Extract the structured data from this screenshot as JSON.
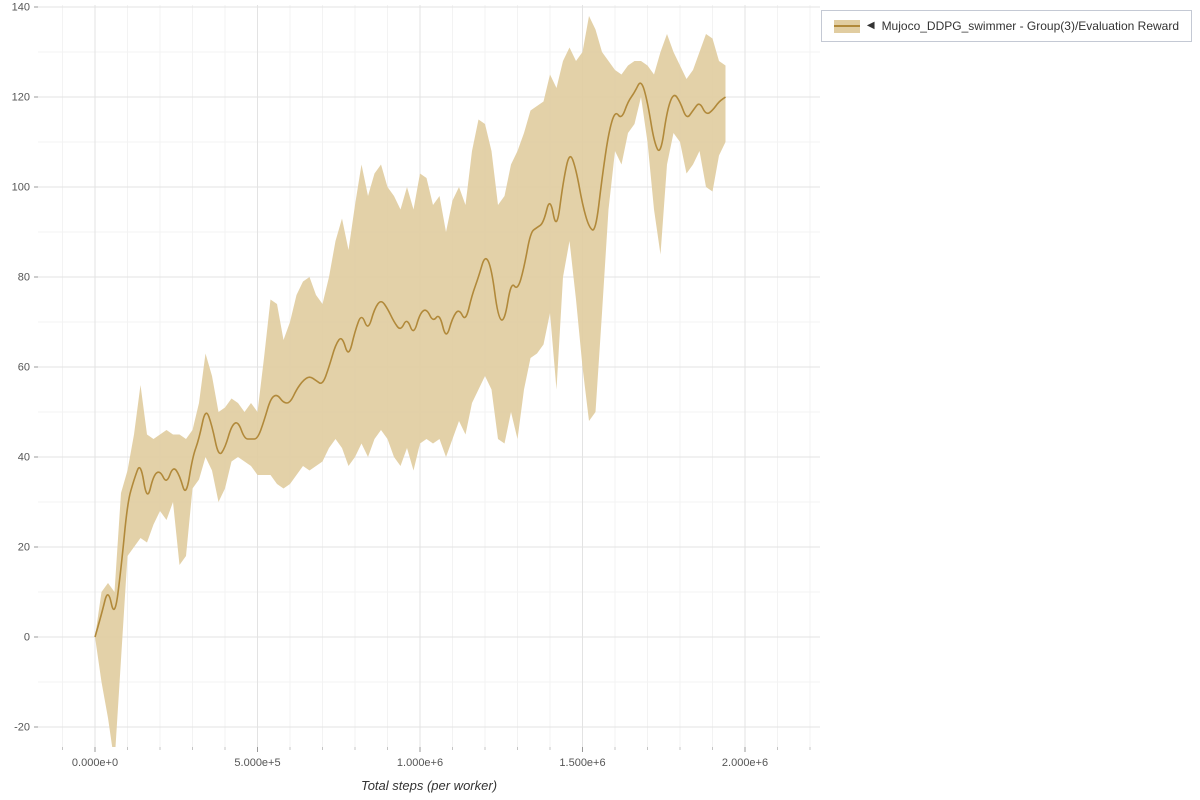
{
  "legend": {
    "collapse_icon": "◀",
    "label": "Mujoco_DDPG_swimmer - Group(3)/Evaluation Reward"
  },
  "axes": {
    "x_label": "Total steps (per worker)",
    "x_tick_labels": [
      "0.000e+0",
      "5.000e+5",
      "1.000e+6",
      "1.500e+6",
      "2.000e+6"
    ],
    "y_tick_labels": [
      "-20",
      "0",
      "20",
      "40",
      "60",
      "80",
      "100",
      "120",
      "140"
    ]
  },
  "colors": {
    "line": "#b1893a",
    "band": "#e1cda1",
    "grid_major": "#e3e3e3",
    "grid_minor": "#f3f3f3",
    "tick_text": "#555555",
    "tick_mark": "#999999",
    "tick_mark_minor": "#c4c4c4"
  },
  "chart_data": {
    "type": "line",
    "title": "",
    "xlabel": "Total steps (per worker)",
    "ylabel": "",
    "xlim": [
      -175000,
      2230000
    ],
    "ylim": [
      -24,
      140
    ],
    "grid": true,
    "legend_position": "top-right-outside",
    "x_tick_values": [
      0,
      500000,
      1000000,
      1500000,
      2000000
    ],
    "x_tick_labels": [
      "0.000e+0",
      "5.000e+5",
      "1.000e+6",
      "1.500e+6",
      "2.000e+6"
    ],
    "y_tick_values": [
      -20,
      0,
      20,
      40,
      60,
      80,
      100,
      120,
      140
    ],
    "x_minor_interval": 100000,
    "y_minor_interval": 10,
    "series": [
      {
        "name": "Mujoco_DDPG_swimmer - Group(3)/Evaluation Reward",
        "band": "std/min-max shaded region",
        "x_start": 0,
        "x_step": 20000,
        "n_points": 98,
        "mean": [
          0,
          5,
          11,
          4,
          15,
          30,
          35,
          39,
          30,
          36,
          37,
          34,
          38,
          36,
          31,
          40,
          44,
          51,
          47,
          40,
          42,
          47,
          48,
          44,
          44,
          44,
          48,
          53,
          54,
          52,
          52,
          55,
          57,
          58,
          57,
          56,
          60,
          65,
          67,
          62,
          68,
          72,
          68,
          73,
          75,
          73,
          70,
          68,
          71,
          67,
          72,
          73,
          70,
          72,
          66,
          71,
          73,
          70,
          76,
          80,
          85,
          82,
          71,
          70,
          79,
          77,
          82,
          90,
          91,
          92,
          98,
          90,
          101,
          108,
          104,
          96,
          91,
          90,
          102,
          112,
          117,
          115,
          119,
          121,
          124,
          119,
          110,
          107,
          117,
          121,
          119,
          115,
          117,
          119,
          116,
          117,
          119,
          120
        ],
        "low": [
          0,
          -10,
          -18,
          -28,
          -5,
          18,
          20,
          22,
          21,
          25,
          28,
          26,
          30,
          16,
          18,
          33,
          35,
          40,
          37,
          30,
          33,
          39,
          40,
          39,
          38,
          36,
          36,
          36,
          34,
          33,
          34,
          36,
          38,
          37,
          38,
          39,
          42,
          44,
          42,
          38,
          40,
          43,
          40,
          44,
          46,
          44,
          40,
          38,
          42,
          37,
          43,
          44,
          43,
          44,
          40,
          44,
          48,
          45,
          52,
          55,
          58,
          55,
          44,
          43,
          50,
          44,
          55,
          62,
          63,
          65,
          72,
          55,
          80,
          88,
          75,
          60,
          48,
          50,
          72,
          95,
          108,
          105,
          112,
          114,
          120,
          110,
          95,
          85,
          105,
          112,
          110,
          103,
          105,
          108,
          100,
          99,
          107,
          110
        ],
        "high": [
          0,
          10,
          12,
          10,
          32,
          37,
          45,
          56,
          45,
          44,
          45,
          46,
          45,
          45,
          44,
          46,
          52,
          63,
          58,
          50,
          51,
          53,
          52,
          50,
          52,
          50,
          62,
          75,
          74,
          66,
          70,
          76,
          79,
          80,
          76,
          74,
          80,
          88,
          93,
          86,
          96,
          105,
          98,
          103,
          105,
          100,
          98,
          95,
          100,
          95,
          103,
          102,
          96,
          98,
          90,
          97,
          100,
          96,
          108,
          115,
          114,
          108,
          96,
          98,
          105,
          108,
          112,
          117,
          118,
          119,
          125,
          122,
          128,
          131,
          128,
          130,
          138,
          135,
          130,
          128,
          126,
          125,
          127,
          128,
          128,
          127,
          125,
          130,
          134,
          130,
          127,
          124,
          126,
          130,
          134,
          133,
          128,
          127
        ]
      }
    ]
  }
}
